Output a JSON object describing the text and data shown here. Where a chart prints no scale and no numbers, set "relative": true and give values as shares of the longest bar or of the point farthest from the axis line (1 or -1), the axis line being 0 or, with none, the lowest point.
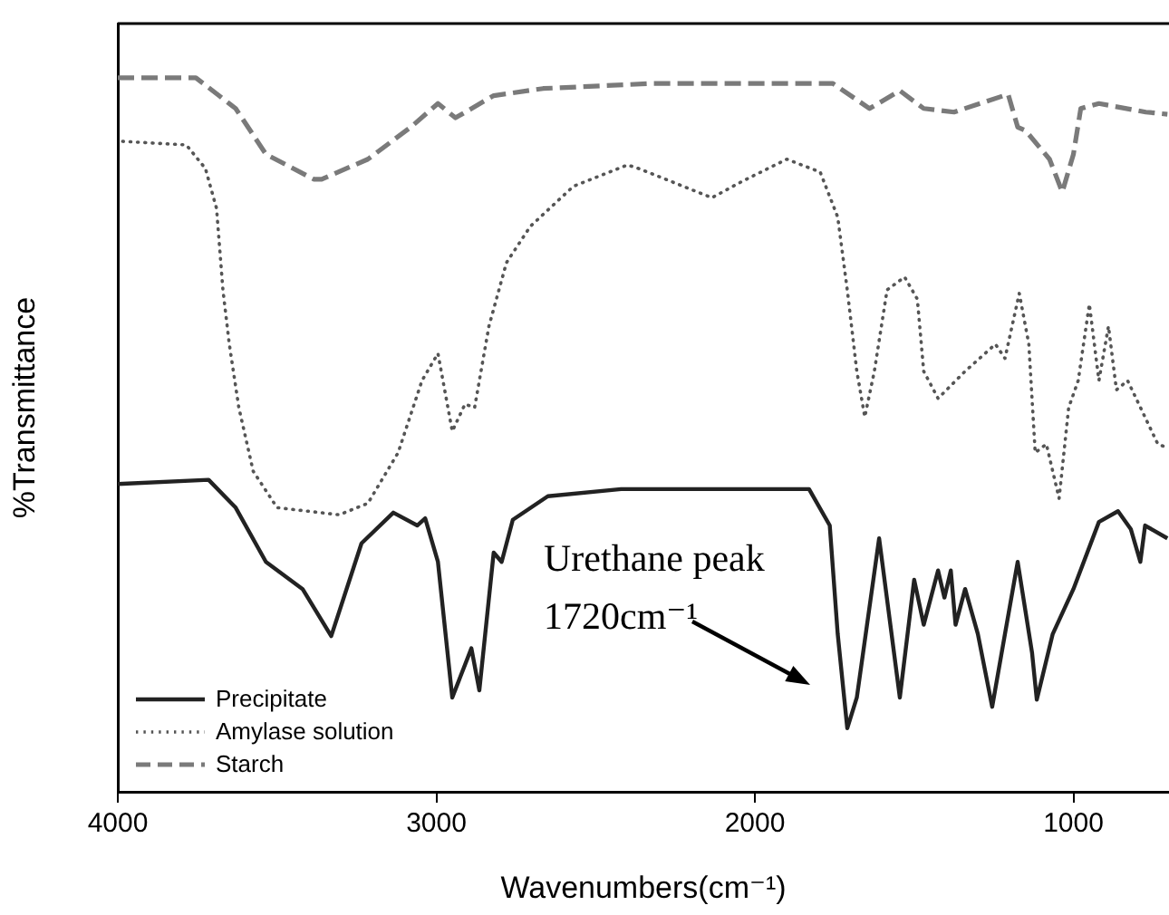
{
  "chart_data": {
    "type": "line",
    "relative": true,
    "xlabel": "Wavenumbers(cm⁻¹)",
    "ylabel": "%Transmittance",
    "xlim": [
      4000,
      700
    ],
    "xticks": [
      4000,
      3000,
      2000,
      1000
    ],
    "grid": false,
    "legend": "bottom left",
    "marker": "none",
    "annotations": [
      "Urethane peak\n1720cm⁻¹"
    ],
    "series": [
      {
        "name": "Precipitate",
        "color": "#222222",
        "line_style": "solid",
        "x": [
          4000,
          3715,
          3630,
          3535,
          3420,
          3330,
          3235,
          3135,
          3060,
          3035,
          2995,
          2950,
          2890,
          2865,
          2820,
          2795,
          2760,
          2650,
          2420,
          1830,
          1765,
          1740,
          1710,
          1680,
          1610,
          1545,
          1500,
          1470,
          1425,
          1405,
          1385,
          1370,
          1340,
          1300,
          1255,
          1215,
          1175,
          1130,
          1115,
          1065,
          1000,
          920,
          860,
          820,
          790,
          775,
          705
        ],
        "values": [
          0.431,
          0.437,
          0.398,
          0.322,
          0.284,
          0.218,
          0.348,
          0.391,
          0.373,
          0.383,
          0.322,
          0.132,
          0.201,
          0.142,
          0.335,
          0.322,
          0.381,
          0.414,
          0.424,
          0.424,
          0.373,
          0.221,
          0.089,
          0.132,
          0.355,
          0.132,
          0.297,
          0.234,
          0.31,
          0.272,
          0.31,
          0.234,
          0.284,
          0.221,
          0.119,
          0.221,
          0.322,
          0.195,
          0.129,
          0.221,
          0.284,
          0.378,
          0.393,
          0.368,
          0.322,
          0.373,
          0.355
        ]
      },
      {
        "name": "Amylase solution",
        "color": "#555555",
        "line_style": "dotted",
        "x": [
          3985,
          3785,
          3725,
          3690,
          3670,
          3650,
          3620,
          3575,
          3500,
          3305,
          3215,
          3120,
          3045,
          2995,
          2950,
          2910,
          2880,
          2835,
          2780,
          2705,
          2570,
          2400,
          2365,
          2135,
          2040,
          1900,
          1795,
          1740,
          1710,
          1680,
          1655,
          1625,
          1585,
          1530,
          1490,
          1470,
          1425,
          1340,
          1245,
          1215,
          1170,
          1140,
          1120,
          1085,
          1045,
          1015,
          985,
          950,
          920,
          890,
          865,
          830,
          735,
          705
        ],
        "values": [
          0.911,
          0.906,
          0.873,
          0.817,
          0.703,
          0.627,
          0.538,
          0.449,
          0.398,
          0.388,
          0.404,
          0.475,
          0.576,
          0.614,
          0.505,
          0.543,
          0.538,
          0.652,
          0.741,
          0.792,
          0.848,
          0.878,
          0.873,
          0.832,
          0.855,
          0.886,
          0.868,
          0.805,
          0.703,
          0.589,
          0.525,
          0.589,
          0.703,
          0.721,
          0.69,
          0.589,
          0.551,
          0.589,
          0.627,
          0.607,
          0.698,
          0.627,
          0.475,
          0.487,
          0.411,
          0.538,
          0.576,
          0.683,
          0.576,
          0.652,
          0.563,
          0.576,
          0.487,
          0.482
        ]
      },
      {
        "name": "Starch",
        "color": "#7a7a7a",
        "line_style": "dashed",
        "x": [
          4000,
          3755,
          3630,
          3535,
          3385,
          3360,
          3215,
          3080,
          2995,
          2940,
          2820,
          2665,
          2325,
          1755,
          1640,
          1545,
          1470,
          1375,
          1205,
          1175,
          1150,
          1075,
          1035,
          1000,
          977,
          920,
          773,
          705
        ],
        "values": [
          1.0,
          1.0,
          0.957,
          0.893,
          0.858,
          0.858,
          0.886,
          0.931,
          0.964,
          0.944,
          0.975,
          0.985,
          0.992,
          0.992,
          0.957,
          0.982,
          0.957,
          0.952,
          0.977,
          0.931,
          0.926,
          0.886,
          0.84,
          0.893,
          0.957,
          0.964,
          0.952,
          0.949
        ]
      }
    ]
  }
}
